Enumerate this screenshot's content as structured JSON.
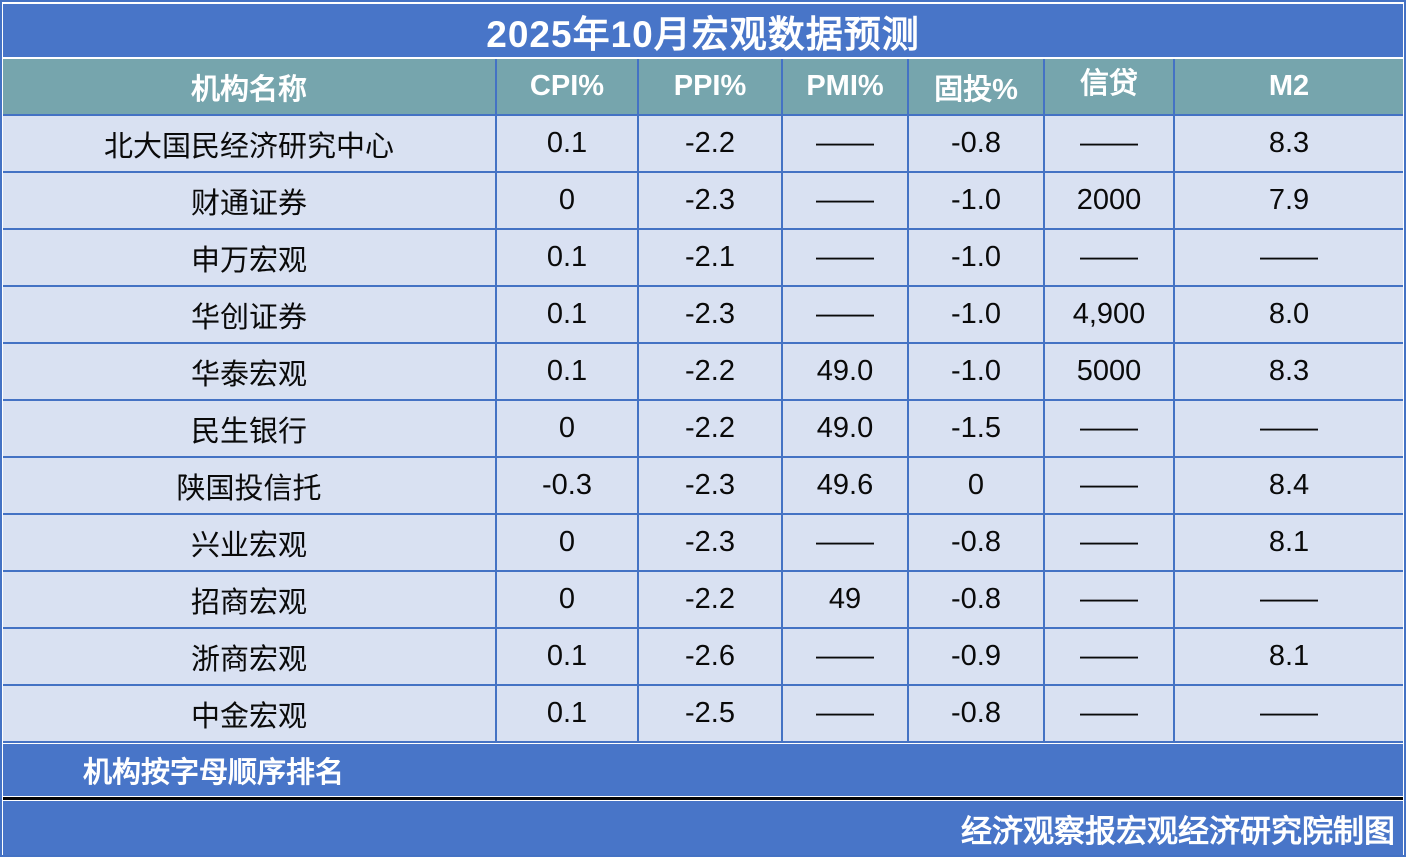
{
  "colors": {
    "bar_blue": "#4875C8",
    "header_teal": "#76A5AD",
    "cell_bg": "#D9E1F2",
    "grid_line": "#4472C4",
    "divider_black": "#050505",
    "text_light": "#FFFFFF",
    "text_dark": "#0A0A0A"
  },
  "chart_data": {
    "type": "table",
    "title": "2025年10月宏观数据预测",
    "columns": [
      "机构名称",
      "CPI%",
      "PPI%",
      "PMI%",
      "固投%",
      "信贷",
      "M2"
    ],
    "rows": [
      {
        "name": "北大国民经济研究中心",
        "values": [
          "0.1",
          "-2.2",
          "——",
          "-0.8",
          "——",
          "8.3"
        ]
      },
      {
        "name": "财通证券",
        "values": [
          "0",
          "-2.3",
          "——",
          "-1.0",
          "2000",
          "7.9"
        ]
      },
      {
        "name": "申万宏观",
        "values": [
          "0.1",
          "-2.1",
          "——",
          "-1.0",
          "——",
          "——"
        ]
      },
      {
        "name": "华创证券",
        "values": [
          "0.1",
          "-2.3",
          "——",
          "-1.0",
          "4,900",
          "8.0"
        ]
      },
      {
        "name": "华泰宏观",
        "values": [
          "0.1",
          "-2.2",
          "49.0",
          "-1.0",
          "5000",
          "8.3"
        ]
      },
      {
        "name": "民生银行",
        "values": [
          "0",
          "-2.2",
          "49.0",
          "-1.5",
          "——",
          "——"
        ]
      },
      {
        "name": "陕国投信托",
        "values": [
          "-0.3",
          "-2.3",
          "49.6",
          "0",
          "——",
          "8.4"
        ]
      },
      {
        "name": "兴业宏观",
        "values": [
          "0",
          "-2.3",
          "——",
          "-0.8",
          "——",
          "8.1"
        ]
      },
      {
        "name": "招商宏观",
        "values": [
          "0",
          "-2.2",
          "49",
          "-0.8",
          "——",
          "——"
        ]
      },
      {
        "name": "浙商宏观",
        "values": [
          "0.1",
          "-2.6",
          "——",
          "-0.9",
          "——",
          "8.1"
        ]
      },
      {
        "name": "中金宏观",
        "values": [
          "0.1",
          "-2.5",
          "——",
          "-0.8",
          "——",
          "——"
        ]
      }
    ],
    "note": "机构按字母顺序排名",
    "credit": "经济观察报宏观经济研究院制图"
  }
}
